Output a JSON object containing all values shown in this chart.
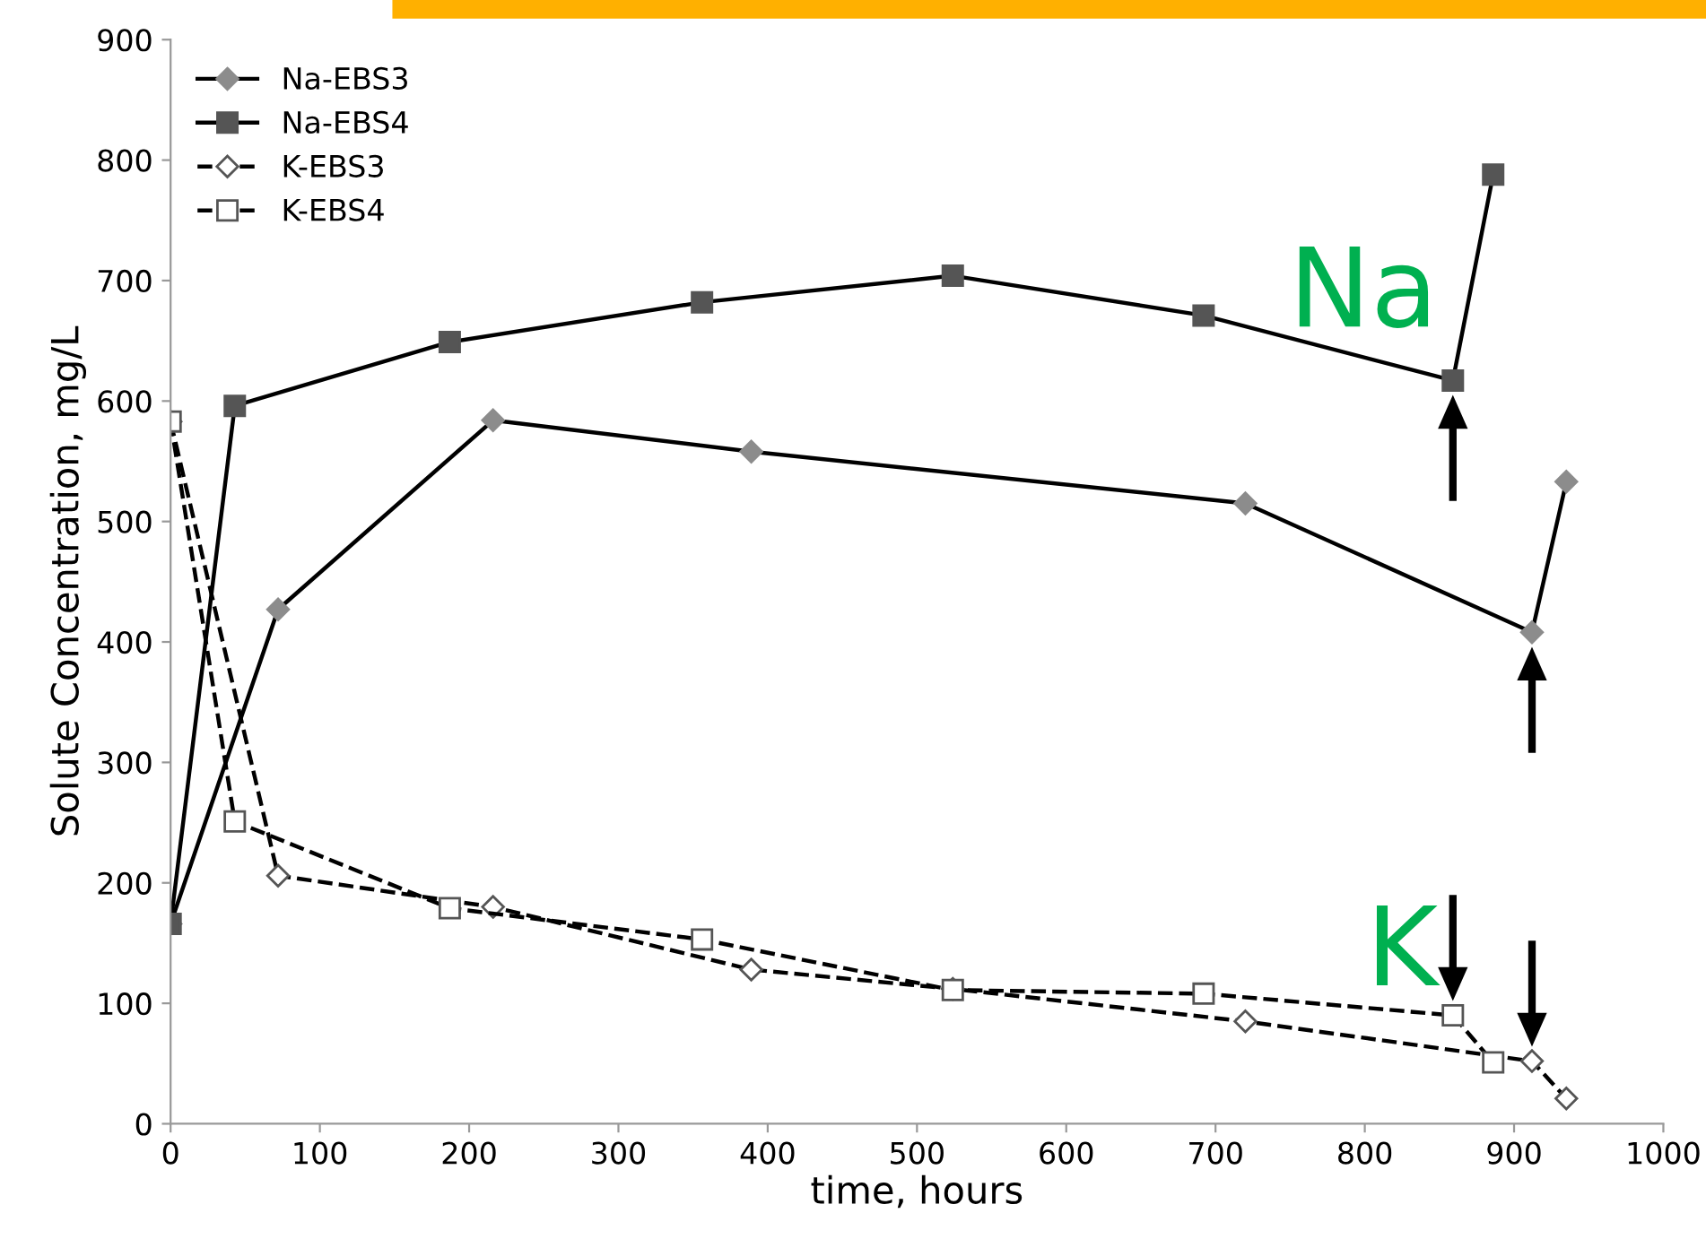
{
  "chart_data": {
    "type": "line",
    "xlabel": "time, hours",
    "ylabel": "Solute Concentration, mg/L",
    "xlim": [
      0,
      1000
    ],
    "xticks": [
      0,
      100,
      200,
      300,
      400,
      500,
      600,
      700,
      800,
      900,
      1000
    ],
    "ylim": [
      0,
      900
    ],
    "yticks": [
      0,
      100,
      200,
      300,
      400,
      500,
      600,
      700,
      800,
      900
    ],
    "grid": false,
    "legend": "top left",
    "series": [
      {
        "name": "Na-EBS3",
        "color": "#000000",
        "marker": "diamond",
        "line_style": "solid",
        "x": [
          0,
          72,
          216,
          389,
          720,
          912,
          935
        ],
        "values": [
          166,
          427,
          584,
          558,
          515,
          408,
          533
        ]
      },
      {
        "name": "Na-EBS4",
        "color": "#000000",
        "marker": "square",
        "line_style": "solid",
        "x": [
          0,
          43,
          187,
          356,
          524,
          692,
          859,
          886
        ],
        "values": [
          166,
          596,
          649,
          682,
          704,
          671,
          617,
          788
        ]
      },
      {
        "name": "K-EBS3",
        "color": "#000000",
        "marker": "diamond",
        "line_style": "dashed",
        "x": [
          0,
          72,
          216,
          389,
          524,
          720,
          912,
          935
        ],
        "values": [
          583,
          206,
          180,
          128,
          112,
          85,
          52,
          21
        ]
      },
      {
        "name": "K-EBS4",
        "color": "#000000",
        "marker": "square",
        "line_style": "dashed",
        "x": [
          0,
          43,
          187,
          356,
          524,
          692,
          859,
          886
        ],
        "values": [
          583,
          251,
          179,
          153,
          111,
          108,
          90,
          51
        ]
      }
    ],
    "annotations": [
      "Na",
      "K"
    ]
  }
}
